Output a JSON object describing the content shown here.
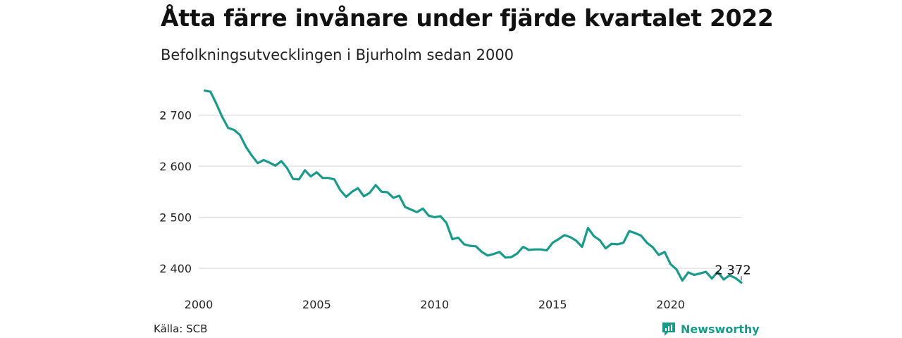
{
  "title": "Åtta färre invånare under fjärde kvartalet 2022",
  "subtitle": "Befolkningsutvecklingen i Bjurholm sedan 2000",
  "source": "Källa: SCB",
  "brand": {
    "name": "Newsworthy",
    "icon": "newsworthy-logo-icon",
    "color": "#1a9a8a"
  },
  "chart_data": {
    "type": "line",
    "line_color": "#1a9a8a",
    "grid": true,
    "ylim": [
      2360,
      2760
    ],
    "yticks": [
      2400,
      2500,
      2600,
      2700
    ],
    "ytick_labels": [
      "2 400",
      "2 500",
      "2 600",
      "2 700"
    ],
    "xlim": [
      2000,
      2023
    ],
    "xticks": [
      2000,
      2005,
      2010,
      2015,
      2020
    ],
    "xtick_labels": [
      "2000",
      "2005",
      "2010",
      "2015",
      "2020"
    ],
    "end_label": "2 372",
    "series": [
      {
        "x": [
          2000.25,
          2000.5,
          2000.75,
          2001,
          2001.25,
          2001.5,
          2001.75,
          2002,
          2002.25,
          2002.5,
          2002.75,
          2003,
          2003.25,
          2003.5,
          2003.75,
          2004,
          2004.25,
          2004.5,
          2004.75,
          2005,
          2005.25,
          2005.5,
          2005.75,
          2006,
          2006.25,
          2006.5,
          2006.75,
          2007,
          2007.25,
          2007.5,
          2007.75,
          2008,
          2008.25,
          2008.5,
          2008.75,
          2009,
          2009.25,
          2009.5,
          2009.75,
          2010,
          2010.25,
          2010.5,
          2010.75,
          2011,
          2011.25,
          2011.5,
          2011.75,
          2012,
          2012.25,
          2012.5,
          2012.75,
          2013,
          2013.25,
          2013.5,
          2013.75,
          2014,
          2014.25,
          2014.5,
          2014.75,
          2015,
          2015.25,
          2015.5,
          2015.75,
          2016,
          2016.25,
          2016.5,
          2016.75,
          2017,
          2017.25,
          2017.5,
          2017.75,
          2018,
          2018.25,
          2018.5,
          2018.75,
          2019,
          2019.25,
          2019.5,
          2019.75,
          2020,
          2020.25,
          2020.5,
          2020.75,
          2021,
          2021.25,
          2021.5,
          2021.75,
          2022,
          2022.25,
          2022.5,
          2022.75,
          2023
        ],
        "values": [
          2748,
          2746,
          2722,
          2696,
          2675,
          2671,
          2661,
          2638,
          2621,
          2606,
          2612,
          2607,
          2601,
          2610,
          2596,
          2575,
          2574,
          2592,
          2580,
          2588,
          2577,
          2577,
          2574,
          2553,
          2540,
          2550,
          2557,
          2541,
          2548,
          2563,
          2550,
          2549,
          2538,
          2542,
          2520,
          2515,
          2510,
          2517,
          2503,
          2500,
          2502,
          2489,
          2457,
          2460,
          2447,
          2444,
          2443,
          2432,
          2425,
          2428,
          2432,
          2421,
          2422,
          2429,
          2442,
          2436,
          2437,
          2437,
          2435,
          2450,
          2457,
          2465,
          2461,
          2454,
          2442,
          2479,
          2463,
          2455,
          2439,
          2448,
          2447,
          2450,
          2473,
          2469,
          2464,
          2450,
          2441,
          2426,
          2432,
          2408,
          2398,
          2376,
          2392,
          2387,
          2390,
          2393,
          2380,
          2393,
          2378,
          2386,
          2381,
          2372
        ]
      }
    ]
  }
}
